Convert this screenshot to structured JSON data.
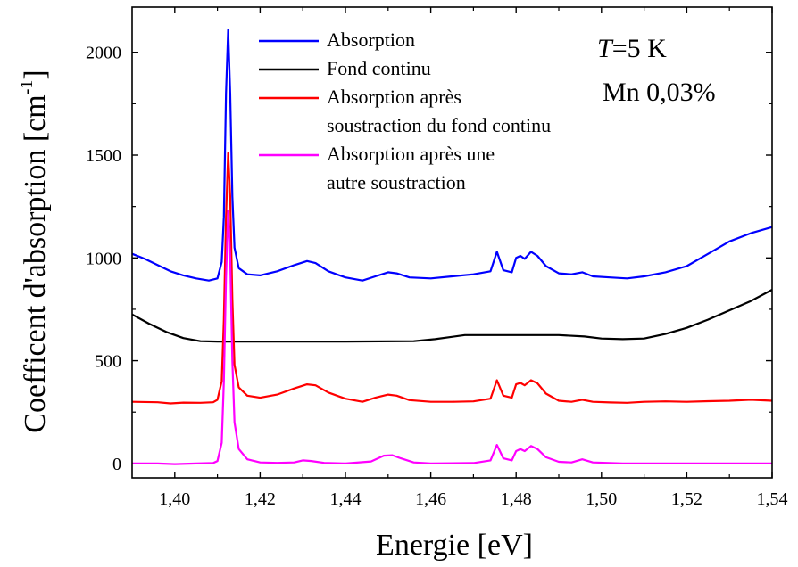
{
  "chart_data": {
    "type": "line",
    "xlabel": "Energie [eV]",
    "ylabel_main": "Coefficent d'absorption [cm",
    "ylabel_sup": "-1",
    "ylabel_close": "]",
    "xlim": [
      1.39,
      1.54
    ],
    "ylim": [
      -70,
      2220
    ],
    "x_ticks": [
      1.4,
      1.42,
      1.44,
      1.46,
      1.48,
      1.5,
      1.52,
      1.54
    ],
    "x_tick_labels": [
      "1,40",
      "1,42",
      "1,44",
      "1,46",
      "1,48",
      "1,50",
      "1,52",
      "1,54"
    ],
    "y_ticks": [
      0,
      500,
      1000,
      1500,
      2000
    ],
    "y_tick_labels": [
      "0",
      "500",
      "1000",
      "1500",
      "2000"
    ],
    "annotations": {
      "temp_var": "T",
      "temp_rest": "=5 K",
      "sample": "Mn 0,03%"
    },
    "legend_position": "top-center",
    "series": [
      {
        "name": "Absorption",
        "color": "#0000ff",
        "legend_lines": [
          "Absorption"
        ],
        "points": [
          [
            1.39,
            1020
          ],
          [
            1.393,
            995
          ],
          [
            1.396,
            965
          ],
          [
            1.399,
            935
          ],
          [
            1.402,
            915
          ],
          [
            1.405,
            900
          ],
          [
            1.408,
            890
          ],
          [
            1.41,
            900
          ],
          [
            1.411,
            980
          ],
          [
            1.4115,
            1200
          ],
          [
            1.412,
            1800
          ],
          [
            1.4125,
            2110
          ],
          [
            1.413,
            1800
          ],
          [
            1.4135,
            1300
          ],
          [
            1.414,
            1050
          ],
          [
            1.415,
            950
          ],
          [
            1.417,
            920
          ],
          [
            1.42,
            915
          ],
          [
            1.424,
            935
          ],
          [
            1.428,
            965
          ],
          [
            1.431,
            985
          ],
          [
            1.433,
            975
          ],
          [
            1.436,
            935
          ],
          [
            1.44,
            905
          ],
          [
            1.444,
            890
          ],
          [
            1.447,
            910
          ],
          [
            1.45,
            930
          ],
          [
            1.452,
            925
          ],
          [
            1.455,
            905
          ],
          [
            1.46,
            900
          ],
          [
            1.465,
            910
          ],
          [
            1.47,
            920
          ],
          [
            1.474,
            935
          ],
          [
            1.4755,
            1030
          ],
          [
            1.477,
            940
          ],
          [
            1.479,
            930
          ],
          [
            1.48,
            1000
          ],
          [
            1.481,
            1010
          ],
          [
            1.482,
            995
          ],
          [
            1.4835,
            1030
          ],
          [
            1.485,
            1010
          ],
          [
            1.487,
            960
          ],
          [
            1.49,
            925
          ],
          [
            1.493,
            920
          ],
          [
            1.4955,
            930
          ],
          [
            1.498,
            910
          ],
          [
            1.502,
            905
          ],
          [
            1.506,
            900
          ],
          [
            1.51,
            910
          ],
          [
            1.515,
            930
          ],
          [
            1.52,
            960
          ],
          [
            1.525,
            1020
          ],
          [
            1.53,
            1080
          ],
          [
            1.535,
            1120
          ],
          [
            1.54,
            1150
          ]
        ]
      },
      {
        "name": "Fond continu",
        "color": "#000000",
        "legend_lines": [
          "Fond continu"
        ],
        "points": [
          [
            1.39,
            725
          ],
          [
            1.394,
            680
          ],
          [
            1.398,
            640
          ],
          [
            1.402,
            610
          ],
          [
            1.406,
            595
          ],
          [
            1.41,
            593
          ],
          [
            1.42,
            593
          ],
          [
            1.44,
            593
          ],
          [
            1.456,
            595
          ],
          [
            1.461,
            605
          ],
          [
            1.468,
            625
          ],
          [
            1.475,
            625
          ],
          [
            1.49,
            625
          ],
          [
            1.496,
            618
          ],
          [
            1.5,
            608
          ],
          [
            1.505,
            605
          ],
          [
            1.51,
            608
          ],
          [
            1.515,
            630
          ],
          [
            1.52,
            660
          ],
          [
            1.525,
            700
          ],
          [
            1.53,
            745
          ],
          [
            1.535,
            790
          ],
          [
            1.54,
            845
          ]
        ]
      },
      {
        "name": "Absorption après soustraction du fond continu",
        "color": "#ff0000",
        "legend_lines": [
          "Absorption après",
          "soustraction du fond continu"
        ],
        "points": [
          [
            1.39,
            300
          ],
          [
            1.396,
            298
          ],
          [
            1.399,
            292
          ],
          [
            1.402,
            296
          ],
          [
            1.406,
            295
          ],
          [
            1.409,
            298
          ],
          [
            1.41,
            310
          ],
          [
            1.411,
            400
          ],
          [
            1.4115,
            700
          ],
          [
            1.412,
            1200
          ],
          [
            1.4125,
            1510
          ],
          [
            1.413,
            1300
          ],
          [
            1.4135,
            800
          ],
          [
            1.414,
            480
          ],
          [
            1.415,
            370
          ],
          [
            1.417,
            330
          ],
          [
            1.42,
            320
          ],
          [
            1.424,
            335
          ],
          [
            1.428,
            365
          ],
          [
            1.431,
            385
          ],
          [
            1.433,
            380
          ],
          [
            1.436,
            345
          ],
          [
            1.44,
            315
          ],
          [
            1.444,
            300
          ],
          [
            1.447,
            320
          ],
          [
            1.45,
            335
          ],
          [
            1.452,
            330
          ],
          [
            1.455,
            308
          ],
          [
            1.46,
            300
          ],
          [
            1.465,
            300
          ],
          [
            1.47,
            302
          ],
          [
            1.474,
            315
          ],
          [
            1.4755,
            405
          ],
          [
            1.477,
            330
          ],
          [
            1.479,
            320
          ],
          [
            1.48,
            385
          ],
          [
            1.481,
            392
          ],
          [
            1.482,
            380
          ],
          [
            1.4835,
            405
          ],
          [
            1.485,
            390
          ],
          [
            1.487,
            340
          ],
          [
            1.49,
            305
          ],
          [
            1.493,
            300
          ],
          [
            1.4955,
            310
          ],
          [
            1.498,
            300
          ],
          [
            1.502,
            297
          ],
          [
            1.506,
            295
          ],
          [
            1.51,
            300
          ],
          [
            1.515,
            302
          ],
          [
            1.52,
            300
          ],
          [
            1.525,
            303
          ],
          [
            1.53,
            305
          ],
          [
            1.535,
            310
          ],
          [
            1.54,
            305
          ]
        ]
      },
      {
        "name": "Absorption après une autre soustraction",
        "color": "#ff00ff",
        "legend_lines": [
          "Absorption après une",
          "autre soustraction"
        ],
        "points": [
          [
            1.39,
            0
          ],
          [
            1.396,
            0
          ],
          [
            1.4,
            -3
          ],
          [
            1.405,
            0
          ],
          [
            1.409,
            2
          ],
          [
            1.41,
            12
          ],
          [
            1.411,
            100
          ],
          [
            1.4115,
            400
          ],
          [
            1.412,
            900
          ],
          [
            1.4125,
            1230
          ],
          [
            1.413,
            1000
          ],
          [
            1.4135,
            500
          ],
          [
            1.414,
            200
          ],
          [
            1.415,
            70
          ],
          [
            1.417,
            20
          ],
          [
            1.42,
            5
          ],
          [
            1.424,
            3
          ],
          [
            1.428,
            5
          ],
          [
            1.43,
            15
          ],
          [
            1.432,
            12
          ],
          [
            1.435,
            3
          ],
          [
            1.44,
            0
          ],
          [
            1.446,
            10
          ],
          [
            1.449,
            38
          ],
          [
            1.451,
            40
          ],
          [
            1.453,
            25
          ],
          [
            1.456,
            5
          ],
          [
            1.46,
            0
          ],
          [
            1.47,
            2
          ],
          [
            1.474,
            15
          ],
          [
            1.4755,
            90
          ],
          [
            1.477,
            25
          ],
          [
            1.479,
            15
          ],
          [
            1.48,
            60
          ],
          [
            1.481,
            70
          ],
          [
            1.482,
            60
          ],
          [
            1.4835,
            85
          ],
          [
            1.485,
            70
          ],
          [
            1.487,
            30
          ],
          [
            1.49,
            8
          ],
          [
            1.493,
            5
          ],
          [
            1.4955,
            20
          ],
          [
            1.498,
            5
          ],
          [
            1.505,
            0
          ],
          [
            1.52,
            0
          ],
          [
            1.54,
            0
          ]
        ]
      }
    ]
  }
}
